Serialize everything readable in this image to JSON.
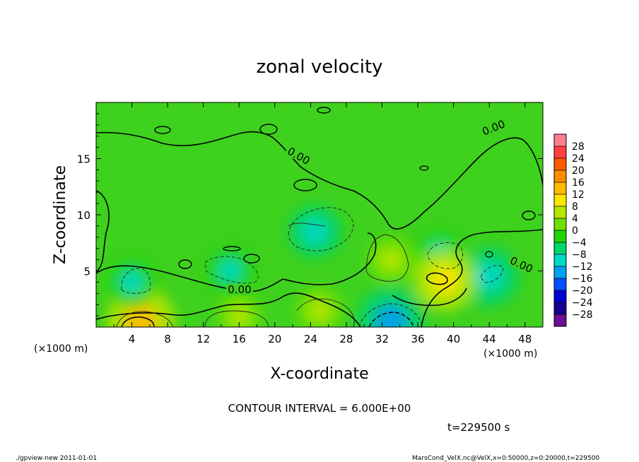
{
  "chart_data": {
    "type": "heatmap",
    "title": "zonal velocity",
    "xlabel": "X-coordinate",
    "ylabel": "Z-coordinate",
    "x_unit": "(×1000 m)",
    "z_unit": "(×1000 m)",
    "xlim": [
      0,
      50
    ],
    "ylim": [
      0,
      20
    ],
    "xticks": [
      4,
      8,
      12,
      16,
      20,
      24,
      28,
      32,
      36,
      40,
      44,
      48
    ],
    "yticks": [
      5,
      10,
      15
    ],
    "contour_interval_text": "CONTOUR INTERVAL = 6.000E+00",
    "contour_labels": [
      "0.00",
      "0.00",
      "0.00",
      "0.00"
    ],
    "time_text": "t=229500 s",
    "colorbar": {
      "levels": [
        28,
        24,
        20,
        16,
        12,
        8,
        4,
        0,
        -4,
        -8,
        -12,
        -16,
        -20,
        -24,
        -28
      ],
      "label_text": [
        "28",
        "24",
        "20",
        "16",
        "12",
        "8",
        "4",
        "0",
        "−4",
        "−8",
        "−12",
        "−16",
        "−20",
        "−24",
        "−28"
      ],
      "colors": [
        "#ff7f8f",
        "#ff4040",
        "#ff5a00",
        "#ff8c00",
        "#ffbb00",
        "#ffe600",
        "#b7e600",
        "#6ee000",
        "#21d400",
        "#00d46a",
        "#00d8c8",
        "#00a0f0",
        "#0050ff",
        "#0000d0",
        "#1a0090",
        "#6a1090"
      ]
    },
    "features": [
      {
        "kind": "max",
        "x": 5,
        "z": 0.5,
        "value": 14
      },
      {
        "kind": "min",
        "x": 33,
        "z": 0.5,
        "value": -14
      },
      {
        "kind": "min",
        "x": 24.5,
        "z": 8.5,
        "value": -9
      },
      {
        "kind": "min",
        "x": 15,
        "z": 5,
        "value": -8
      },
      {
        "kind": "min",
        "x": 4,
        "z": 4,
        "value": -8
      },
      {
        "kind": "min",
        "x": 38.5,
        "z": 6.5,
        "value": -8
      },
      {
        "kind": "min",
        "x": 44,
        "z": 4.5,
        "value": -11
      },
      {
        "kind": "max",
        "x": 39,
        "z": 4.2,
        "value": 12
      },
      {
        "kind": "max",
        "x": 33,
        "z": 6,
        "value": 7
      },
      {
        "kind": "max",
        "x": 25,
        "z": 1.5,
        "value": 7
      },
      {
        "kind": "max",
        "x": 16,
        "z": 1,
        "value": 6
      }
    ]
  },
  "footer": {
    "left": "./gpview-new   2011-01-01",
    "right": "MarsCond_VelX.nc@VelX,x=0:50000,z=0:20000,t=229500"
  }
}
